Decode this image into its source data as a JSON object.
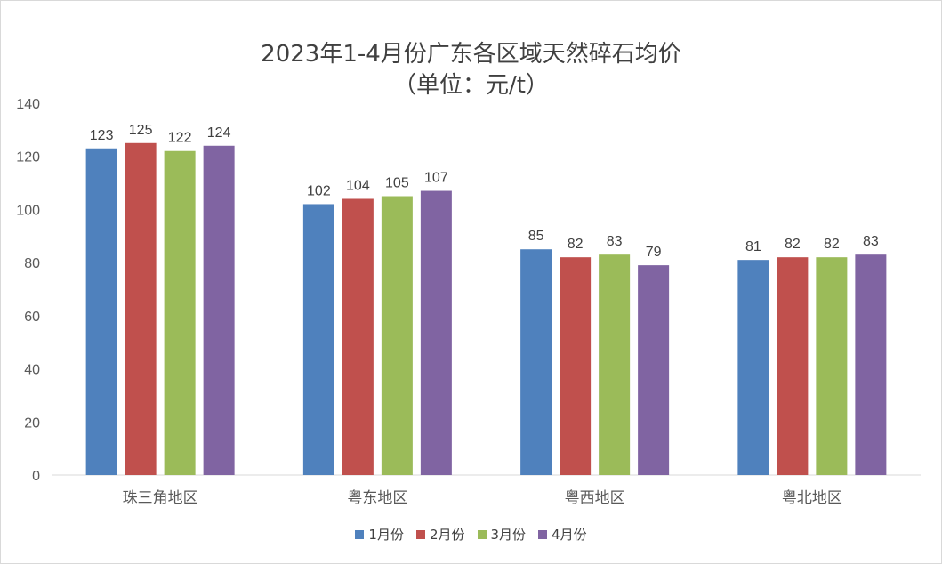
{
  "chart_data": {
    "type": "bar",
    "title": "2023年1-4月份广东各区域天然碎石均价",
    "subtitle": "（单位：元/t）",
    "categories": [
      "珠三角地区",
      "粤东地区",
      "粤西地区",
      "粤北地区"
    ],
    "series": [
      {
        "name": "1月份",
        "color": "#4f81bd",
        "values": [
          123,
          102,
          85,
          81
        ]
      },
      {
        "name": "2月份",
        "color": "#c0504d",
        "values": [
          125,
          104,
          82,
          82
        ]
      },
      {
        "name": "3月份",
        "color": "#9bbb59",
        "values": [
          122,
          105,
          83,
          82
        ]
      },
      {
        "name": "4月份",
        "color": "#8064a2",
        "values": [
          124,
          107,
          79,
          83
        ]
      }
    ],
    "yticks": [
      0,
      20,
      40,
      60,
      80,
      100,
      120,
      140
    ],
    "ylim": [
      0,
      140
    ],
    "xlabel": "",
    "ylabel": "",
    "grid": false,
    "legend_position": "bottom"
  }
}
